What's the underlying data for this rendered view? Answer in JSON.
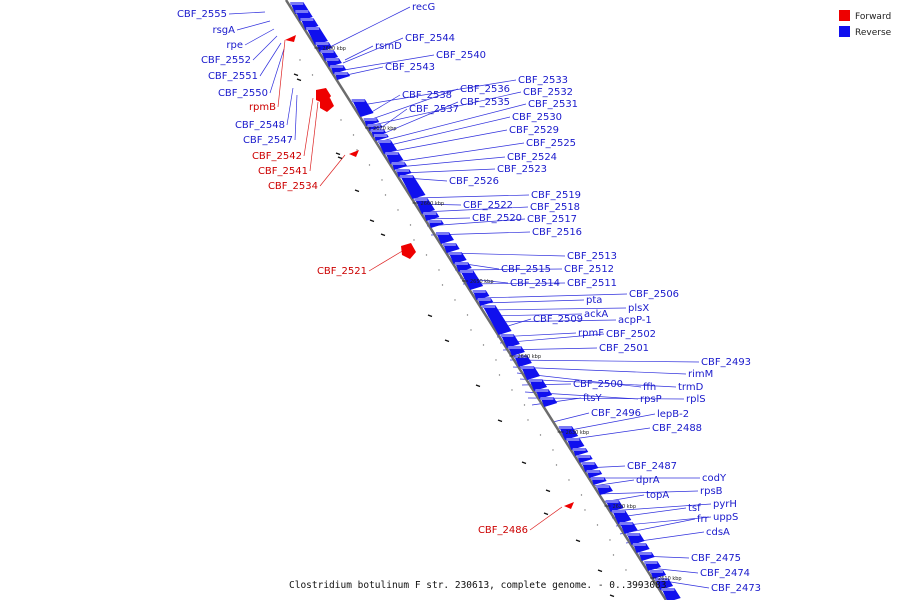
{
  "caption": "Clostridium botulinum F str. 230613, complete genome. - 0..3993083",
  "legend": {
    "forward_label": "Forward",
    "reverse_label": "Reverse",
    "forward_color": "#ee0000",
    "reverse_color": "#1010ee"
  },
  "colors": {
    "forward_text": "#cc0000",
    "reverse_text": "#1a1acc",
    "line": "#6c6c6c"
  },
  "ticks": [
    {
      "label": "2680 kbp",
      "kbp": 2680
    },
    {
      "label": "2670 kbp",
      "kbp": 2670
    },
    {
      "label": "2660 kbp",
      "kbp": 2660
    },
    {
      "label": "2650 kbp",
      "kbp": 2650
    },
    {
      "label": "2640 kbp",
      "kbp": 2640
    },
    {
      "label": "2630 kbp",
      "kbp": 2630
    },
    {
      "label": "2620 kbp",
      "kbp": 2620
    },
    {
      "label": "2610 kbp",
      "kbp": 2610
    }
  ],
  "genes": [
    {
      "name": "CBF_2555",
      "strand": "reverse"
    },
    {
      "name": "rsgA",
      "strand": "reverse"
    },
    {
      "name": "rpe",
      "strand": "reverse"
    },
    {
      "name": "CBF_2552",
      "strand": "reverse"
    },
    {
      "name": "CBF_2551",
      "strand": "reverse"
    },
    {
      "name": "CBF_2550",
      "strand": "reverse"
    },
    {
      "name": "rpmB",
      "strand": "forward"
    },
    {
      "name": "CBF_2548",
      "strand": "reverse"
    },
    {
      "name": "CBF_2547",
      "strand": "reverse"
    },
    {
      "name": "CBF_2542",
      "strand": "forward"
    },
    {
      "name": "CBF_2541",
      "strand": "forward"
    },
    {
      "name": "CBF_2534",
      "strand": "forward"
    },
    {
      "name": "CBF_2521",
      "strand": "forward"
    },
    {
      "name": "CBF_2486",
      "strand": "forward"
    },
    {
      "name": "recG",
      "strand": "reverse"
    },
    {
      "name": "rsmD",
      "strand": "reverse"
    },
    {
      "name": "CBF_2544",
      "strand": "reverse"
    },
    {
      "name": "CBF_2540",
      "strand": "reverse"
    },
    {
      "name": "CBF_2543",
      "strand": "reverse"
    },
    {
      "name": "CBF_2533",
      "strand": "reverse"
    },
    {
      "name": "CBF_2538",
      "strand": "reverse"
    },
    {
      "name": "CBF_2536",
      "strand": "reverse"
    },
    {
      "name": "CBF_2532",
      "strand": "reverse"
    },
    {
      "name": "CBF_2537",
      "strand": "reverse"
    },
    {
      "name": "CBF_2535",
      "strand": "reverse"
    },
    {
      "name": "CBF_2531",
      "strand": "reverse"
    },
    {
      "name": "CBF_2530",
      "strand": "reverse"
    },
    {
      "name": "CBF_2529",
      "strand": "reverse"
    },
    {
      "name": "CBF_2525",
      "strand": "reverse"
    },
    {
      "name": "CBF_2524",
      "strand": "reverse"
    },
    {
      "name": "CBF_2523",
      "strand": "reverse"
    },
    {
      "name": "CBF_2526",
      "strand": "reverse"
    },
    {
      "name": "CBF_2519",
      "strand": "reverse"
    },
    {
      "name": "CBF_2522",
      "strand": "reverse"
    },
    {
      "name": "CBF_2518",
      "strand": "reverse"
    },
    {
      "name": "CBF_2520",
      "strand": "reverse"
    },
    {
      "name": "CBF_2517",
      "strand": "reverse"
    },
    {
      "name": "CBF_2516",
      "strand": "reverse"
    },
    {
      "name": "CBF_2513",
      "strand": "reverse"
    },
    {
      "name": "CBF_2515",
      "strand": "reverse"
    },
    {
      "name": "CBF_2512",
      "strand": "reverse"
    },
    {
      "name": "CBF_2514",
      "strand": "reverse"
    },
    {
      "name": "CBF_2511",
      "strand": "reverse"
    },
    {
      "name": "CBF_2506",
      "strand": "reverse"
    },
    {
      "name": "pta",
      "strand": "reverse"
    },
    {
      "name": "plsX",
      "strand": "reverse"
    },
    {
      "name": "ackA",
      "strand": "reverse"
    },
    {
      "name": "acpP-1",
      "strand": "reverse"
    },
    {
      "name": "CBF_2509",
      "strand": "reverse"
    },
    {
      "name": "rpmF",
      "strand": "reverse"
    },
    {
      "name": "CBF_2502",
      "strand": "reverse"
    },
    {
      "name": "CBF_2501",
      "strand": "reverse"
    },
    {
      "name": "CBF_2493",
      "strand": "reverse"
    },
    {
      "name": "rimM",
      "strand": "reverse"
    },
    {
      "name": "ffh",
      "strand": "reverse"
    },
    {
      "name": "trmD",
      "strand": "reverse"
    },
    {
      "name": "CBF_2500",
      "strand": "reverse"
    },
    {
      "name": "rpsP",
      "strand": "reverse"
    },
    {
      "name": "rplS",
      "strand": "reverse"
    },
    {
      "name": "ftsY",
      "strand": "reverse"
    },
    {
      "name": "CBF_2496",
      "strand": "reverse"
    },
    {
      "name": "lepB-2",
      "strand": "reverse"
    },
    {
      "name": "CBF_2488",
      "strand": "reverse"
    },
    {
      "name": "CBF_2487",
      "strand": "reverse"
    },
    {
      "name": "codY",
      "strand": "reverse"
    },
    {
      "name": "dprA",
      "strand": "reverse"
    },
    {
      "name": "rpsB",
      "strand": "reverse"
    },
    {
      "name": "topA",
      "strand": "reverse"
    },
    {
      "name": "pyrH",
      "strand": "reverse"
    },
    {
      "name": "tsf",
      "strand": "reverse"
    },
    {
      "name": "uppS",
      "strand": "reverse"
    },
    {
      "name": "frr",
      "strand": "reverse"
    },
    {
      "name": "cdsA",
      "strand": "reverse"
    },
    {
      "name": "CBF_2475",
      "strand": "reverse"
    },
    {
      "name": "CBF_2474",
      "strand": "reverse"
    },
    {
      "name": "CBF_2473",
      "strand": "reverse"
    }
  ]
}
